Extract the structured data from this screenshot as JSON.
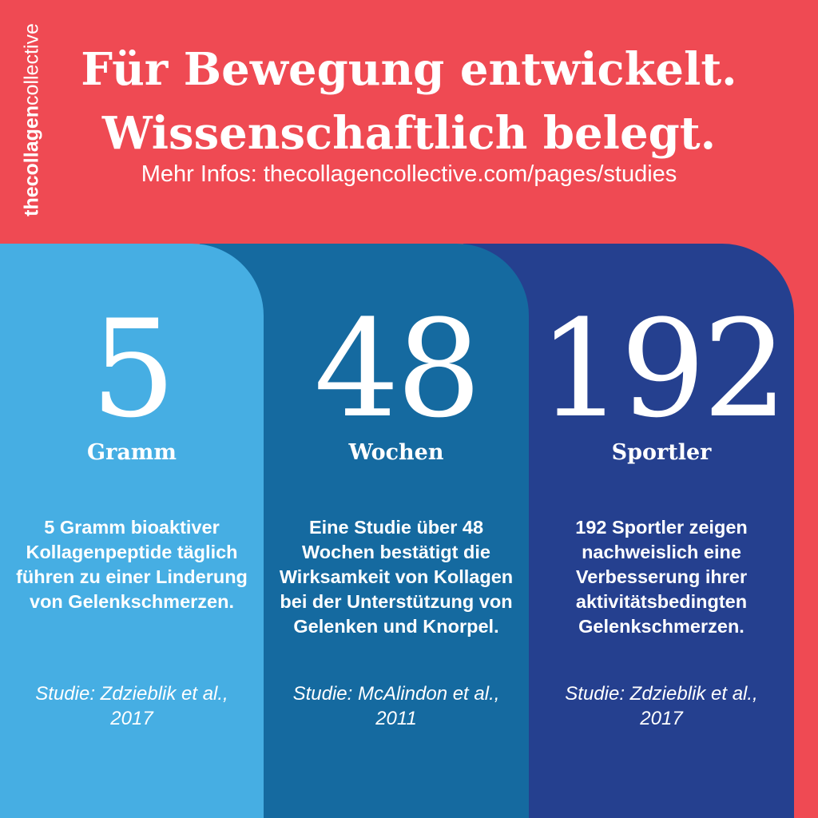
{
  "brand": {
    "name_bold": "thecollagen",
    "name_light": "collective"
  },
  "header": {
    "line1": "Für Bewegung entwickelt.",
    "line2": "Wissenschaftlich belegt.",
    "subline": "Mehr Infos: thecollagencollective.com/pages/studies"
  },
  "stats": [
    {
      "number": "5",
      "unit": "Gramm",
      "description": "5 Gramm bioaktiver Kollagenpeptide täglich führen zu einer Linderung von Gelenkschmerzen.",
      "citation": "Studie: Zdzieblik et al., 2017",
      "color": "#46aee3"
    },
    {
      "number": "48",
      "unit": "Wochen",
      "description": "Eine Studie über 48 Wochen bestätigt die Wirksamkeit von Kollagen bei der Unterstützung von Gelenken und Knorpel.",
      "citation": "Studie: McAlindon et al., 2011",
      "color": "#156aa0"
    },
    {
      "number": "192",
      "unit": "Sportler",
      "description": "192 Sportler zeigen nachweislich eine Verbesserung ihrer aktivitätsbedingten Gelenkschmerzen.",
      "citation": "Studie: Zdzieblik et al., 2017",
      "color": "#25408f"
    }
  ],
  "colors": {
    "background": "#ef4a53",
    "text": "#ffffff"
  }
}
